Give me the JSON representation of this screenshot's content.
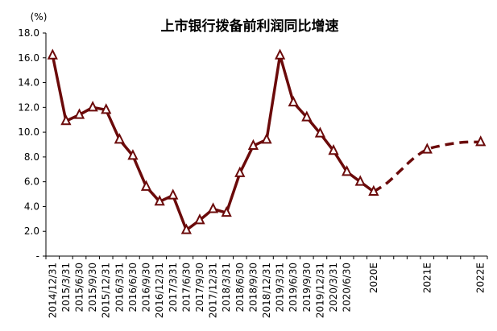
{
  "chart_data": {
    "type": "line",
    "title": "上市银行拨备前利润同比增速",
    "y_unit": "(%)",
    "ylim": [
      0,
      18
    ],
    "y_ticks": [
      {
        "value": 0,
        "label": "-"
      },
      {
        "value": 2,
        "label": "2.0"
      },
      {
        "value": 4,
        "label": "4.0"
      },
      {
        "value": 6,
        "label": "6.0"
      },
      {
        "value": 8,
        "label": "8.0"
      },
      {
        "value": 10,
        "label": "10.0"
      },
      {
        "value": 12,
        "label": "12.0"
      },
      {
        "value": 14,
        "label": "14.0"
      },
      {
        "value": 16,
        "label": "16.0"
      },
      {
        "value": 18,
        "label": "18.0"
      }
    ],
    "categories": [
      "2014/12/31",
      "2015/3/31",
      "2015/6/30",
      "2015/9/30",
      "2015/12/31",
      "2016/3/31",
      "2016/6/30",
      "2016/9/30",
      "2016/12/31",
      "2017/3/31",
      "2017/6/30",
      "2017/9/30",
      "2017/12/31",
      "2018/3/31",
      "2018/6/30",
      "2018/9/30",
      "2018/12/31",
      "2019/3/31",
      "2019/6/30",
      "2019/9/30",
      "2019/12/31",
      "2020/3/31",
      "2020/6/30",
      "",
      "2020E",
      "",
      "",
      "",
      "2021E",
      "",
      "",
      "",
      "2022E"
    ],
    "values": [
      16.2,
      10.9,
      11.4,
      12.0,
      11.8,
      9.4,
      8.1,
      5.6,
      4.4,
      4.9,
      2.1,
      2.9,
      3.8,
      3.5,
      6.7,
      8.9,
      9.4,
      16.2,
      12.4,
      11.2,
      9.9,
      8.5,
      6.8,
      6.0,
      5.2,
      null,
      null,
      null,
      8.6,
      null,
      null,
      null,
      9.2
    ],
    "solid_until_index": 24,
    "projection_path": [
      {
        "index": 24,
        "value": 5.2
      },
      {
        "index": 25,
        "value": 5.9
      },
      {
        "index": 26,
        "value": 6.9
      },
      {
        "index": 27,
        "value": 7.9
      },
      {
        "index": 28,
        "value": 8.6
      },
      {
        "index": 29,
        "value": 8.9
      },
      {
        "index": 30,
        "value": 9.1
      },
      {
        "index": 31,
        "value": 9.2
      },
      {
        "index": 32,
        "value": 9.2
      }
    ],
    "colors": {
      "line": "#6b0a0a",
      "marker_fill": "#ffffff",
      "axis": "#000000"
    },
    "grid": false,
    "legend": "none"
  }
}
